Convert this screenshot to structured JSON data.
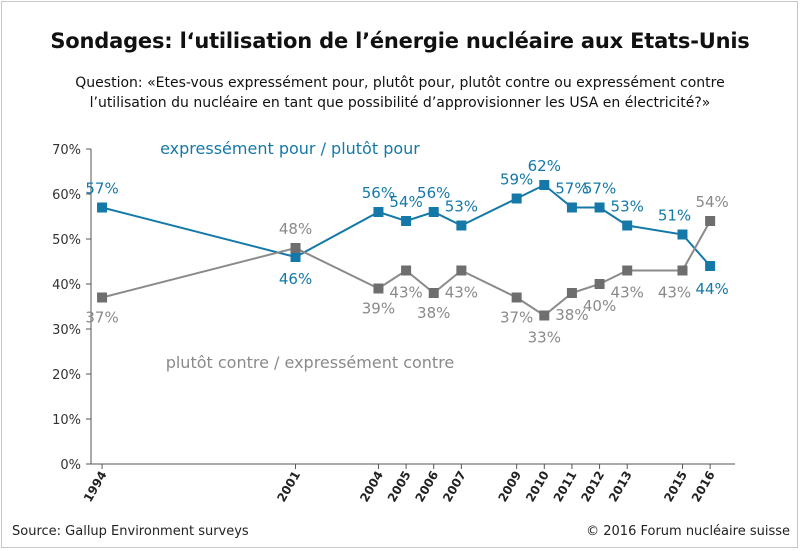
{
  "title": "Sondages: l‘utilisation de l’énergie nucléaire aux Etats-Unis",
  "question_line1": "Question: «Etes-vous expressément pour, plutôt pour, plutôt contre ou expressément contre",
  "question_line2": "l’utilisation du nucléaire en tant que possibilité d’approvisionner les USA en électricité?»",
  "source": "Source: Gallup Environment surveys",
  "copyright": "© 2016 Forum nucléaire suisse",
  "chart_data": {
    "type": "line",
    "x": [
      1994,
      2001,
      2004,
      2005,
      2006,
      2007,
      2009,
      2010,
      2011,
      2012,
      2013,
      2015,
      2016
    ],
    "ylim": [
      0,
      70
    ],
    "yticks": [
      "0%",
      "10%",
      "20%",
      "30%",
      "40%",
      "50%",
      "60%",
      "70%"
    ],
    "grid": false,
    "series": [
      {
        "name": "expressément pour / plutôt pour",
        "color": "#1479a8",
        "values": [
          57,
          46,
          56,
          54,
          56,
          53,
          59,
          62,
          57,
          57,
          53,
          51,
          44
        ],
        "labels": [
          "57%",
          "46%",
          "56%",
          "54%",
          "56%",
          "53%",
          "59%",
          "62%",
          "57%",
          "57%",
          "53%",
          "51%",
          "44%"
        ]
      },
      {
        "name": "plutôt contre / expressément contre",
        "color": "#8a8a8a",
        "marker_color": "#6e6e6e",
        "values": [
          37,
          48,
          39,
          43,
          38,
          43,
          37,
          33,
          38,
          40,
          43,
          43,
          54
        ],
        "labels": [
          "37%",
          "48%",
          "39%",
          "43%",
          "38%",
          "43%",
          "37%",
          "33%",
          "38%",
          "40%",
          "43%",
          "43%",
          "54%"
        ]
      }
    ]
  }
}
